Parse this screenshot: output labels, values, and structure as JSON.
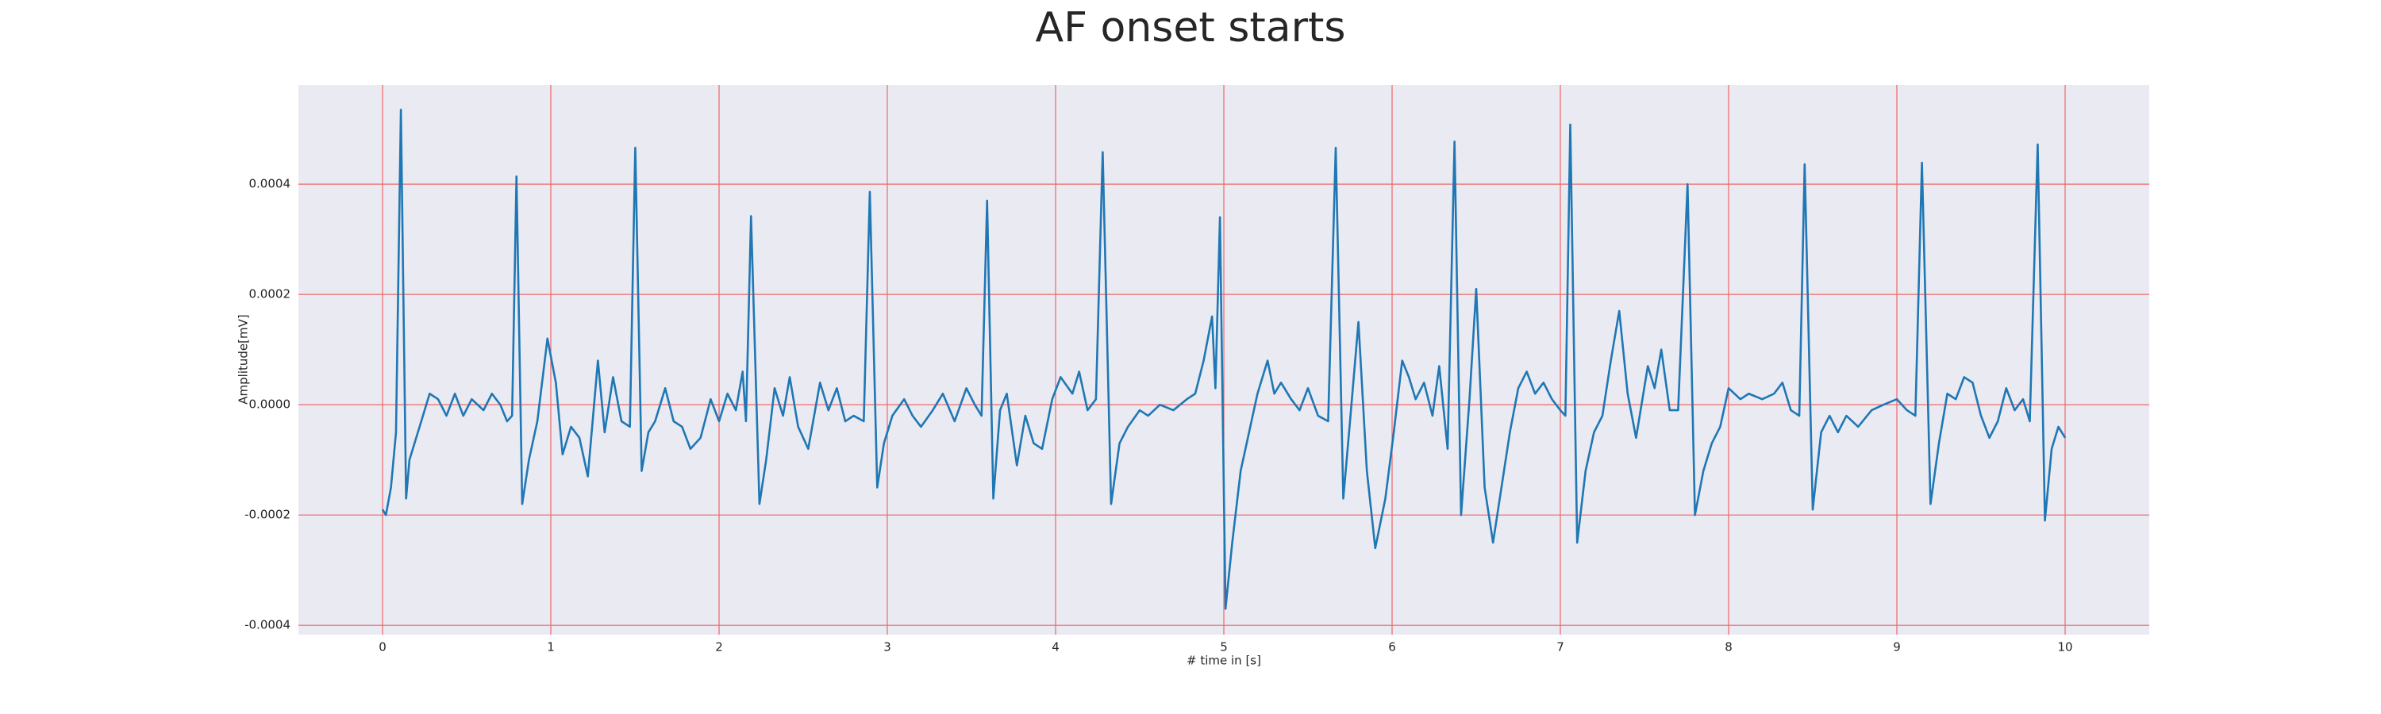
{
  "chart_data": {
    "type": "line",
    "title": "AF onset starts",
    "x_label": "# time in [s]",
    "y_label": "Amplitude[mV]",
    "color": "#1f77b4",
    "grid": true,
    "grid_color": "#f06666",
    "background": "#eaeaf2",
    "xlim": [
      -0.5,
      10.5
    ],
    "ylim": [
      -0.000417,
      0.00058
    ],
    "xticks": [
      0,
      1,
      2,
      3,
      4,
      5,
      6,
      7,
      8,
      9,
      10
    ],
    "yticks": [
      -0.0004,
      -0.0002,
      {
        "value": 0,
        "label": "0.0000"
      },
      0.0002,
      0.0004
    ],
    "x": [
      0,
      0.02,
      0.05,
      0.08,
      0.109,
      0.14,
      0.16,
      0.22,
      0.28,
      0.33,
      0.38,
      0.43,
      0.48,
      0.53,
      0.6,
      0.65,
      0.7,
      0.74,
      0.77,
      0.796,
      0.83,
      0.87,
      0.92,
      0.98,
      1.03,
      1.07,
      1.12,
      1.17,
      1.22,
      1.28,
      1.32,
      1.37,
      1.42,
      1.47,
      1.502,
      1.54,
      1.58,
      1.62,
      1.68,
      1.73,
      1.78,
      1.83,
      1.89,
      1.95,
      2.0,
      2.05,
      2.1,
      2.14,
      2.16,
      2.19,
      2.24,
      2.28,
      2.33,
      2.38,
      2.42,
      2.47,
      2.53,
      2.6,
      2.65,
      2.7,
      2.75,
      2.8,
      2.86,
      2.896,
      2.94,
      2.98,
      3.03,
      3.1,
      3.15,
      3.2,
      3.27,
      3.33,
      3.4,
      3.47,
      3.52,
      3.56,
      3.593,
      3.63,
      3.67,
      3.71,
      3.77,
      3.82,
      3.87,
      3.92,
      3.98,
      4.03,
      4.1,
      4.14,
      4.19,
      4.24,
      4.28,
      4.33,
      4.38,
      4.43,
      4.5,
      4.55,
      4.62,
      4.7,
      4.78,
      4.83,
      4.88,
      4.93,
      4.95,
      4.977,
      5.01,
      5.05,
      5.1,
      5.15,
      5.2,
      5.26,
      5.3,
      5.34,
      5.4,
      5.45,
      5.5,
      5.56,
      5.62,
      5.665,
      5.71,
      5.75,
      5.8,
      5.85,
      5.9,
      5.96,
      6.01,
      6.06,
      6.1,
      6.14,
      6.19,
      6.24,
      6.28,
      6.33,
      6.371,
      6.41,
      6.46,
      6.5,
      6.55,
      6.6,
      6.65,
      6.7,
      6.75,
      6.8,
      6.85,
      6.9,
      6.95,
      7.0,
      7.03,
      7.059,
      7.1,
      7.15,
      7.2,
      7.25,
      7.3,
      7.35,
      7.4,
      7.45,
      7.52,
      7.56,
      7.6,
      7.65,
      7.7,
      7.756,
      7.8,
      7.85,
      7.9,
      7.95,
      8.0,
      8.07,
      8.12,
      8.2,
      8.27,
      8.32,
      8.37,
      8.42,
      8.452,
      8.5,
      8.55,
      8.6,
      8.65,
      8.7,
      8.77,
      8.85,
      8.92,
      9.0,
      9.06,
      9.11,
      9.149,
      9.2,
      9.25,
      9.3,
      9.35,
      9.4,
      9.45,
      9.5,
      9.55,
      9.6,
      9.65,
      9.7,
      9.75,
      9.79,
      9.837,
      9.88,
      9.92,
      9.96,
      10.0
    ],
    "values": [
      -0.00019,
      -0.0002,
      -0.00015,
      -5e-05,
      0.000535,
      -0.00017,
      -0.0001,
      -4e-05,
      2e-05,
      1e-05,
      -2e-05,
      2e-05,
      -2e-05,
      1e-05,
      -1e-05,
      2e-05,
      0,
      -3e-05,
      -2e-05,
      0.000414,
      -0.00018,
      -0.0001,
      -3e-05,
      0.00012,
      4e-05,
      -9e-05,
      -4e-05,
      -6e-05,
      -0.00013,
      8e-05,
      -5e-05,
      5e-05,
      -3e-05,
      -4e-05,
      0.000466,
      -0.00012,
      -5e-05,
      -3e-05,
      3e-05,
      -3e-05,
      -4e-05,
      -8e-05,
      -6e-05,
      1e-05,
      -3e-05,
      2e-05,
      -1e-05,
      6e-05,
      -3e-05,
      0.000342,
      -0.00018,
      -0.0001,
      3e-05,
      -2e-05,
      5e-05,
      -4e-05,
      -8e-05,
      4e-05,
      -1e-05,
      3e-05,
      -3e-05,
      -2e-05,
      -3e-05,
      0.000386,
      -0.00015,
      -7e-05,
      -2e-05,
      1e-05,
      -2e-05,
      -4e-05,
      -1e-05,
      2e-05,
      -3e-05,
      3e-05,
      0,
      -2e-05,
      0.00037,
      -0.00017,
      -1e-05,
      2e-05,
      -0.00011,
      -2e-05,
      -7e-05,
      -8e-05,
      1e-05,
      5e-05,
      2e-05,
      6e-05,
      -1e-05,
      1e-05,
      0.000458,
      -0.00018,
      -7e-05,
      -4e-05,
      -1e-05,
      -2e-05,
      0,
      -1e-05,
      1e-05,
      2e-05,
      8e-05,
      0.00016,
      3e-05,
      0.00034,
      -0.00037,
      -0.00025,
      -0.00012,
      -5e-05,
      2e-05,
      8e-05,
      2e-05,
      4e-05,
      1e-05,
      -1e-05,
      3e-05,
      -2e-05,
      -3e-05,
      0.000466,
      -0.00017,
      -3e-05,
      0.00015,
      -0.00012,
      -0.00026,
      -0.00017,
      -5e-05,
      8e-05,
      5e-05,
      1e-05,
      4e-05,
      -2e-05,
      7e-05,
      -8e-05,
      0.000477,
      -0.0002,
      1e-05,
      0.00021,
      -0.00015,
      -0.00025,
      -0.00015,
      -5e-05,
      3e-05,
      6e-05,
      2e-05,
      4e-05,
      1e-05,
      -1e-05,
      -2e-05,
      0.000508,
      -0.00025,
      -0.00012,
      -5e-05,
      -2e-05,
      8e-05,
      0.00017,
      2e-05,
      -6e-05,
      7e-05,
      3e-05,
      0.0001,
      -1e-05,
      -1e-05,
      0.0004,
      -0.0002,
      -0.00012,
      -7e-05,
      -4e-05,
      3e-05,
      1e-05,
      2e-05,
      1e-05,
      2e-05,
      4e-05,
      -1e-05,
      -2e-05,
      0.000436,
      -0.00019,
      -5e-05,
      -2e-05,
      -5e-05,
      -2e-05,
      -4e-05,
      -1e-05,
      0,
      1e-05,
      -1e-05,
      -2e-05,
      0.000439,
      -0.00018,
      -7e-05,
      2e-05,
      1e-05,
      5e-05,
      4e-05,
      -2e-05,
      -6e-05,
      -3e-05,
      3e-05,
      -1e-05,
      1e-05,
      -3e-05,
      0.000472,
      -0.00021,
      -8e-05,
      -4e-05,
      -6e-05
    ]
  }
}
